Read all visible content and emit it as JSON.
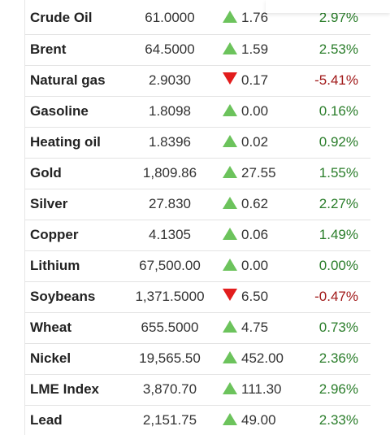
{
  "commodities": [
    {
      "name": "Crude Oil",
      "price": "61.0000",
      "change": "1.76",
      "direction": "up",
      "percent": "2.97%"
    },
    {
      "name": "Brent",
      "price": "64.5000",
      "change": "1.59",
      "direction": "up",
      "percent": "2.53%"
    },
    {
      "name": "Natural gas",
      "price": "2.9030",
      "change": "0.17",
      "direction": "down",
      "percent": "-5.41%"
    },
    {
      "name": "Gasoline",
      "price": "1.8098",
      "change": "0.00",
      "direction": "up",
      "percent": "0.16%"
    },
    {
      "name": "Heating oil",
      "price": "1.8396",
      "change": "0.02",
      "direction": "up",
      "percent": "0.92%"
    },
    {
      "name": "Gold",
      "price": "1,809.86",
      "change": "27.55",
      "direction": "up",
      "percent": "1.55%"
    },
    {
      "name": "Silver",
      "price": "27.830",
      "change": "0.62",
      "direction": "up",
      "percent": "2.27%"
    },
    {
      "name": "Copper",
      "price": "4.1305",
      "change": "0.06",
      "direction": "up",
      "percent": "1.49%"
    },
    {
      "name": "Lithium",
      "price": "67,500.00",
      "change": "0.00",
      "direction": "up",
      "percent": "0.00%"
    },
    {
      "name": "Soybeans",
      "price": "1,371.5000",
      "change": "6.50",
      "direction": "down",
      "percent": "-0.47%"
    },
    {
      "name": "Wheat",
      "price": "655.5000",
      "change": "4.75",
      "direction": "up",
      "percent": "0.73%"
    },
    {
      "name": "Nickel",
      "price": "19,565.50",
      "change": "452.00",
      "direction": "up",
      "percent": "2.36%"
    },
    {
      "name": "LME Index",
      "price": "3,870.70",
      "change": "111.30",
      "direction": "up",
      "percent": "2.96%"
    },
    {
      "name": "Lead",
      "price": "2,151.75",
      "change": "49.00",
      "direction": "up",
      "percent": "2.33%"
    }
  ],
  "icons": {
    "up": "triangle-up-icon",
    "down": "triangle-down-icon"
  },
  "colors": {
    "up_arrow": "#6cc35c",
    "down_arrow": "#e21d1d",
    "positive_text": "#2a7d2a",
    "negative_text": "#a01818"
  }
}
